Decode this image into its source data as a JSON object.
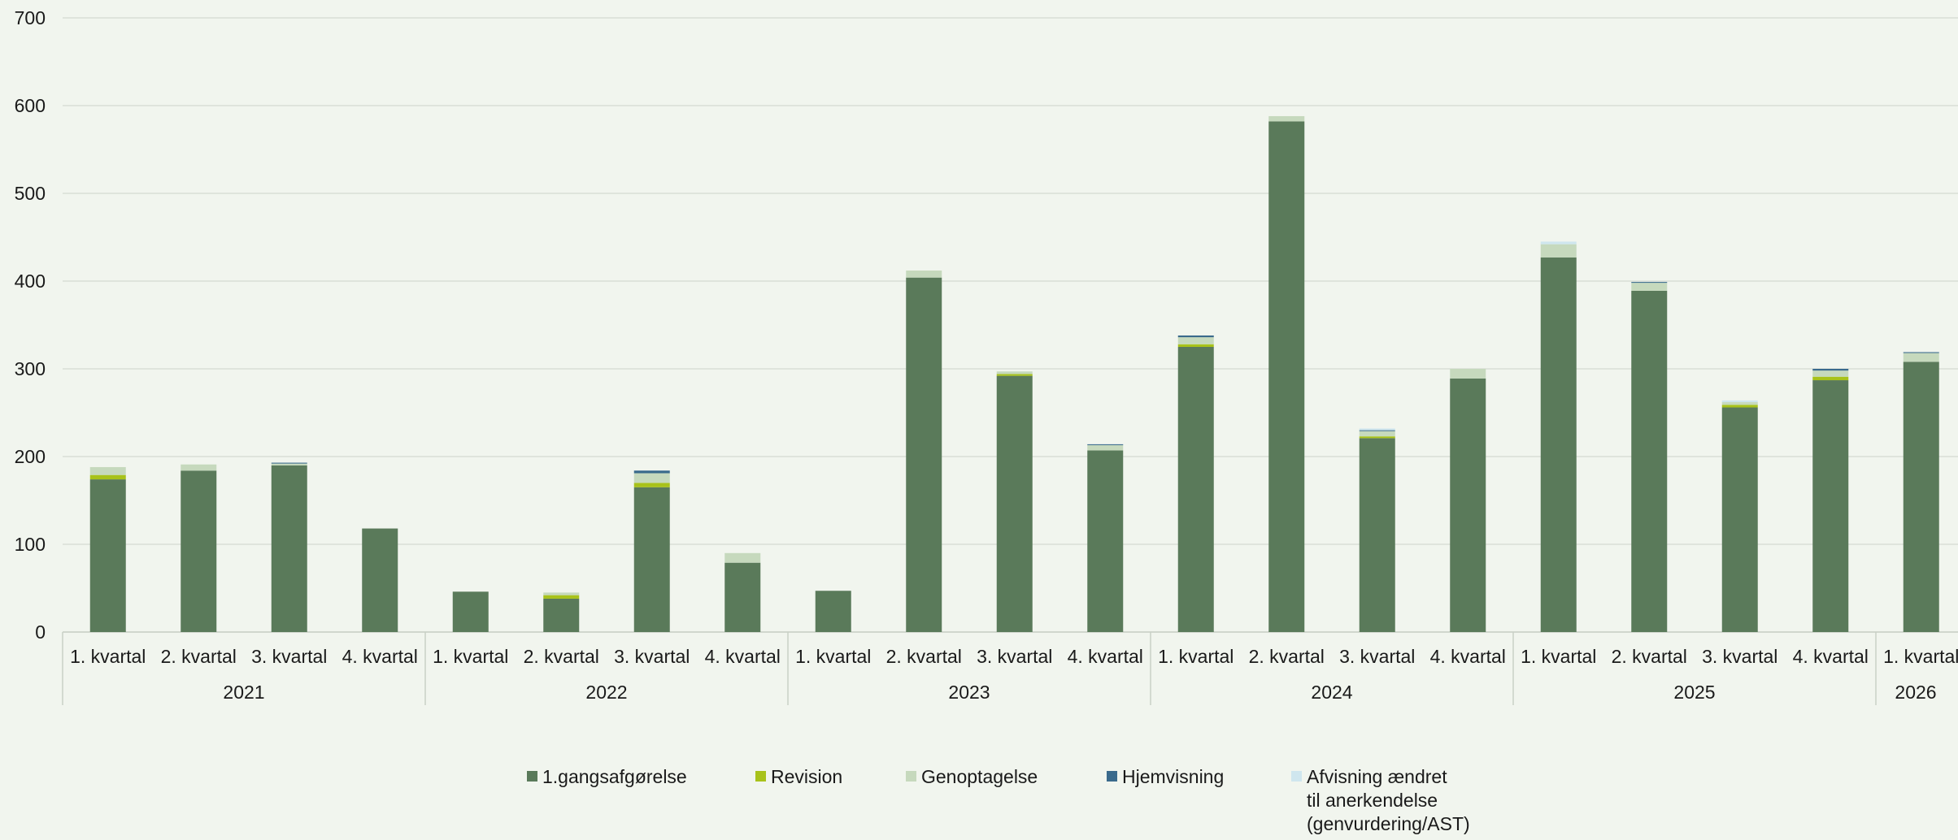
{
  "chart_data": {
    "type": "bar",
    "stacked": true,
    "ylim": [
      0,
      700
    ],
    "yticks": [
      "0",
      "100",
      "200",
      "300",
      "400",
      "500",
      "600",
      "700"
    ],
    "grid": true,
    "legend_position": "bottom",
    "groups": [
      {
        "label": "2021",
        "categories": [
          "1. kvartal",
          "2. kvartal",
          "3. kvartal",
          "4. kvartal"
        ]
      },
      {
        "label": "2022",
        "categories": [
          "1. kvartal",
          "2. kvartal",
          "3. kvartal",
          "4. kvartal"
        ]
      },
      {
        "label": "2023",
        "categories": [
          "1. kvartal",
          "2. kvartal",
          "3. kvartal",
          "4. kvartal"
        ]
      },
      {
        "label": "2024",
        "categories": [
          "1. kvartal",
          "2. kvartal",
          "3. kvartal",
          "4. kvartal"
        ]
      },
      {
        "label": "2025",
        "categories": [
          "1. kvartal",
          "2. kvartal",
          "3. kvartal",
          "4. kvartal"
        ]
      },
      {
        "label": "2026",
        "categories": [
          "1. kvartal"
        ]
      }
    ],
    "series": [
      {
        "name": "1.gangsafgørelse",
        "color": "#5a7a5a",
        "values": [
          174,
          184,
          190,
          118,
          46,
          38,
          165,
          79,
          47,
          404,
          292,
          207,
          325,
          582,
          221,
          289,
          427,
          389,
          256,
          287,
          308
        ]
      },
      {
        "name": "Revision",
        "color": "#a8c21a",
        "values": [
          5,
          0,
          0,
          0,
          0,
          4,
          5,
          0,
          0,
          0,
          2,
          0,
          3,
          0,
          2,
          0,
          0,
          0,
          3,
          4,
          0
        ]
      },
      {
        "name": "Genoptagelse",
        "color": "#c6d9bd",
        "values": [
          9,
          7,
          2,
          0,
          0,
          3,
          11,
          11,
          0,
          8,
          3,
          6,
          8,
          6,
          6,
          11,
          15,
          9,
          3,
          7,
          10
        ]
      },
      {
        "name": "Hjemvisning",
        "color": "#3a6a8c",
        "values": [
          0,
          0,
          1,
          0,
          0,
          0,
          3,
          0,
          0,
          0,
          0,
          1,
          2,
          0,
          1,
          0,
          0,
          1,
          0,
          2,
          1
        ]
      },
      {
        "name": "Afvisning ændret\ntil anerkendelse\n(genvurdering/AST)",
        "color": "#cfe6ee",
        "values": [
          0,
          0,
          0,
          0,
          0,
          0,
          0,
          0,
          0,
          0,
          0,
          0,
          0,
          0,
          2,
          0,
          3,
          0,
          2,
          0,
          0
        ]
      }
    ]
  }
}
